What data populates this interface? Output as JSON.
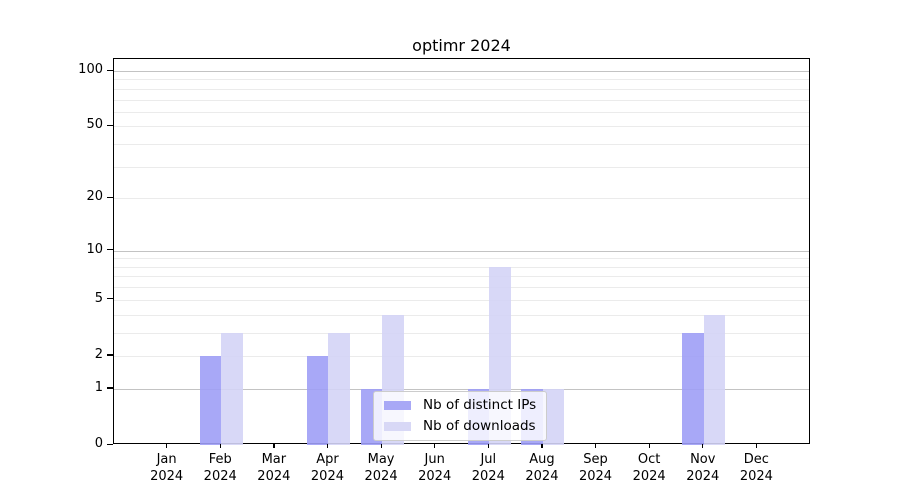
{
  "chart_data": {
    "type": "bar",
    "title": "optimr 2024",
    "year_label": "2024",
    "months": [
      "Jan",
      "Feb",
      "Mar",
      "Apr",
      "May",
      "Jun",
      "Jul",
      "Aug",
      "Sep",
      "Oct",
      "Nov",
      "Dec"
    ],
    "series": [
      {
        "name": "Nb of distinct IPs",
        "color": "#a8a8f6",
        "values": [
          0,
          2,
          0,
          2,
          1,
          0,
          1,
          1,
          0,
          0,
          3,
          0
        ]
      },
      {
        "name": "Nb of downloads",
        "color": "#d8d8f6",
        "values": [
          0,
          3,
          0,
          3,
          4,
          0,
          8,
          1,
          0,
          0,
          4,
          0
        ]
      }
    ],
    "y_ticks": [
      0,
      1,
      2,
      5,
      10,
      20,
      50,
      100
    ],
    "y_scale": "log1p",
    "ylim": [
      0,
      116
    ],
    "grid": "horizontal",
    "legend_position": "lower center inside plot"
  },
  "colors": {
    "background": "#ffffff",
    "bar_distinct_ips": "#a8a8f6",
    "bar_downloads": "#d8d8f6",
    "grid_major": "#c3c3c3",
    "grid_minor": "#ebebeb",
    "spine": "#000000",
    "legend_border": "#cccccc",
    "text": "#000000"
  }
}
